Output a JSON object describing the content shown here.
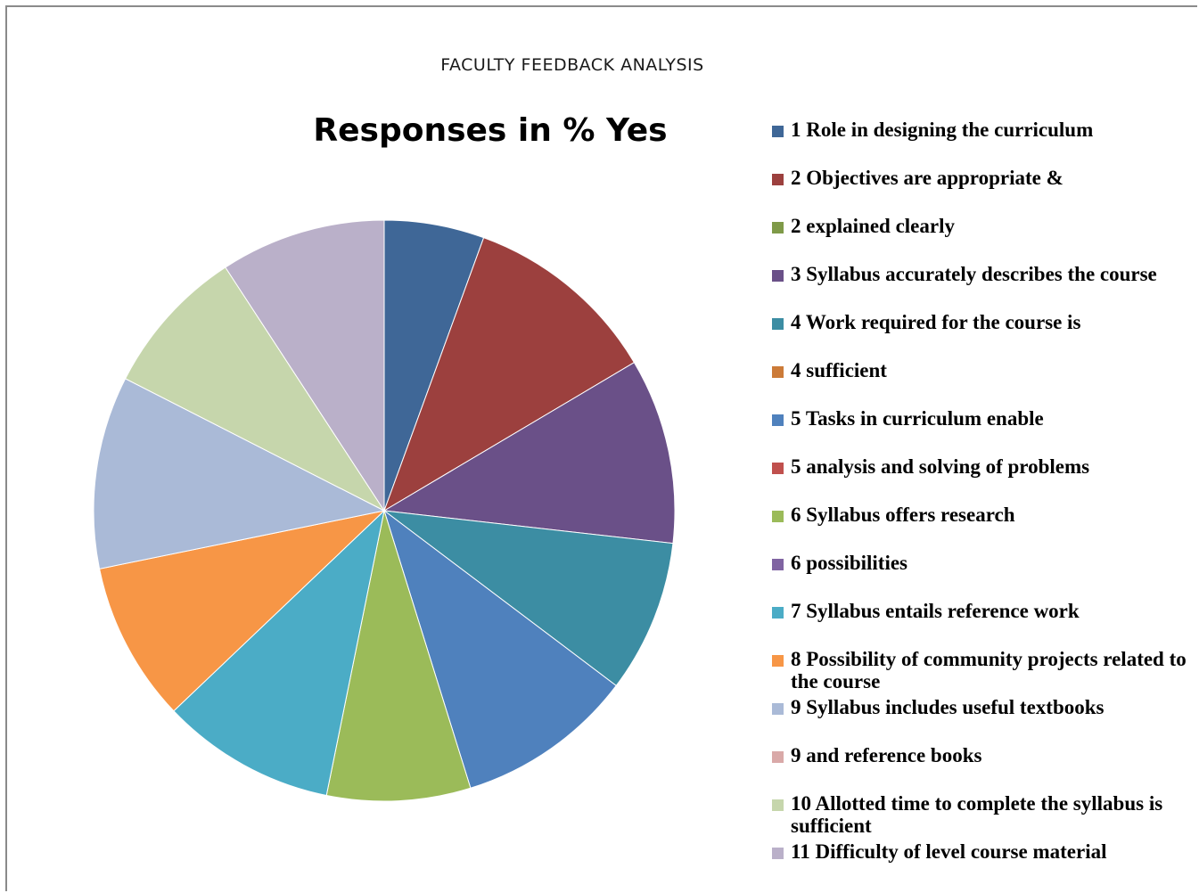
{
  "page": {
    "header": "FACULTY FEEDBACK ANALYSIS"
  },
  "chart_data": {
    "type": "pie",
    "title": "Responses in % Yes",
    "legend_position": "right",
    "legend": [
      {
        "label": "1 Role in designing the curriculum",
        "color": "#3F6797"
      },
      {
        "label": "2 Objectives are appropriate &",
        "color": "#9C403E"
      },
      {
        "label": "2 explained clearly",
        "color": "#7F9A48"
      },
      {
        "label": "3 Syllabus accurately describes the course",
        "color": "#6A5088"
      },
      {
        "label": "4 Work required for the course is",
        "color": "#3C8DA3"
      },
      {
        "label": "4 sufficient",
        "color": "#CC7B38"
      },
      {
        "label": "5 Tasks in curriculum enable",
        "color": "#4F81BD"
      },
      {
        "label": "5 analysis and solving of problems",
        "color": "#C0504D"
      },
      {
        "label": "6 Syllabus offers research",
        "color": "#9BBB59"
      },
      {
        "label": "6 possibilities",
        "color": "#8064A2"
      },
      {
        "label": "7 Syllabus entails reference work",
        "color": "#4BACC6"
      },
      {
        "label": "8 Possibility of community projects related to the course",
        "color": "#F79646"
      },
      {
        "label": "9 Syllabus includes useful textbooks",
        "color": "#AABAD7"
      },
      {
        "label": "9 and reference books",
        "color": "#D9A9A8"
      },
      {
        "label": "10 Allotted time to complete the syllabus is sufficient",
        "color": "#C6D6AC"
      },
      {
        "label": "11 Difficulty of level course material",
        "color": "#BAB0C9"
      }
    ],
    "slices": [
      {
        "legend_index": 0,
        "value": 5.5,
        "color": "#3F6797"
      },
      {
        "legend_index": 1,
        "value": 10.8,
        "color": "#9C403E"
      },
      {
        "legend_index": 3,
        "value": 10.2,
        "color": "#6A5088"
      },
      {
        "legend_index": 4,
        "value": 8.4,
        "color": "#3C8DA3"
      },
      {
        "legend_index": 6,
        "value": 9.8,
        "color": "#4F81BD"
      },
      {
        "legend_index": 8,
        "value": 7.9,
        "color": "#9BBB59"
      },
      {
        "legend_index": 10,
        "value": 9.6,
        "color": "#4BACC6"
      },
      {
        "legend_index": 11,
        "value": 8.8,
        "color": "#F79646"
      },
      {
        "legend_index": 12,
        "value": 10.6,
        "color": "#AABAD7"
      },
      {
        "legend_index": 14,
        "value": 8.2,
        "color": "#C6D6AC"
      },
      {
        "legend_index": 15,
        "value": 9.1,
        "color": "#BAB0C9"
      }
    ]
  }
}
